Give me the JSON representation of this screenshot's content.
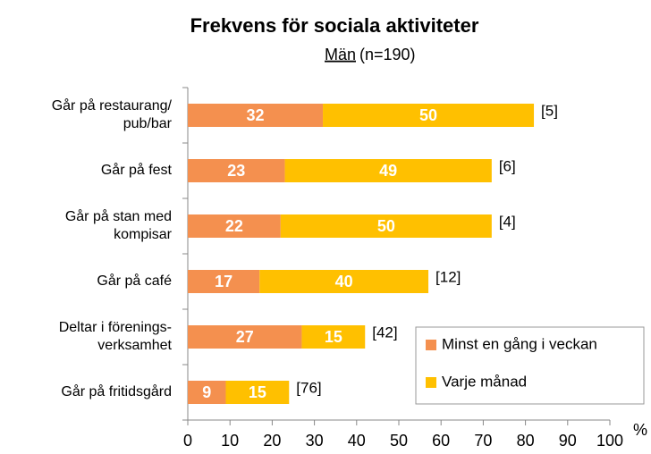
{
  "chart_data": {
    "type": "stacked-barh",
    "title": "Frekvens för sociala aktiviteter",
    "subtitle": "Män",
    "subtitle_note": "(n=190)",
    "x_unit": "%",
    "categories": [
      "Går på restaurang/\npub/bar",
      "Går på fest",
      "Går på stan med\nkompisar",
      "Går på café",
      "Deltar i förenings-\nverksamhet",
      "Går på fritidsgård"
    ],
    "series": [
      {
        "name": "Minst en gång i veckan",
        "color": "#F4904F",
        "values": [
          32,
          23,
          22,
          17,
          27,
          9
        ]
      },
      {
        "name": "Varje månad",
        "color": "#FFC000",
        "values": [
          50,
          49,
          50,
          40,
          15,
          15
        ]
      }
    ],
    "remainder_labels": [
      "[5]",
      "[6]",
      "[4]",
      "[12]",
      "[42]",
      "[76]"
    ],
    "xlim": [
      0,
      100
    ],
    "xticks": [
      0,
      10,
      20,
      30,
      40,
      50,
      60,
      70,
      80,
      90,
      100
    ],
    "legend": "lower-right"
  }
}
